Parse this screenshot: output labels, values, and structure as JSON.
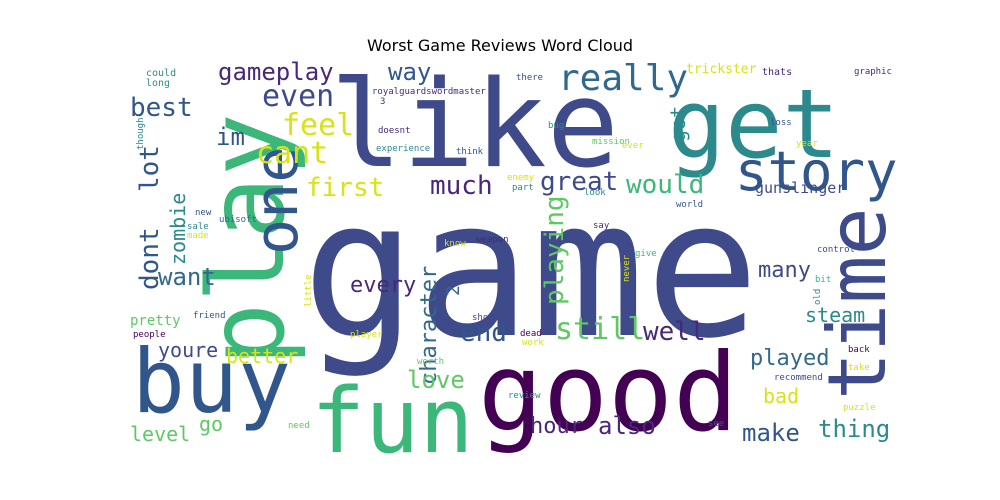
{
  "title": "Worst Game Reviews Word Cloud",
  "words": [
    {
      "text": "game",
      "color": "#3e4a89"
    },
    {
      "text": "like",
      "color": "#3e4a89"
    },
    {
      "text": "get",
      "color": "#2c8a8c"
    },
    {
      "text": "play",
      "color": "#3bb77a"
    },
    {
      "text": "good",
      "color": "#440154"
    },
    {
      "text": "buy",
      "color": "#31568c"
    },
    {
      "text": "fun",
      "color": "#3bb77a"
    },
    {
      "text": "one",
      "color": "#31568c"
    },
    {
      "text": "time",
      "color": "#3e4a89"
    },
    {
      "text": "story",
      "color": "#31568c"
    },
    {
      "text": "really",
      "color": "#30688e"
    },
    {
      "text": "gameplay",
      "color": "#482878"
    },
    {
      "text": "way",
      "color": "#31568c"
    },
    {
      "text": "even",
      "color": "#3e4a89"
    },
    {
      "text": "best",
      "color": "#31568c"
    },
    {
      "text": "feel",
      "color": "#d8e219"
    },
    {
      "text": "cant",
      "color": "#d8e219"
    },
    {
      "text": "im",
      "color": "#31568c"
    },
    {
      "text": "first",
      "color": "#d8e219"
    },
    {
      "text": "much",
      "color": "#482878"
    },
    {
      "text": "great",
      "color": "#3e4a89"
    },
    {
      "text": "would",
      "color": "#3bb77a"
    },
    {
      "text": "got",
      "color": "#2c8a8c"
    },
    {
      "text": "dont",
      "color": "#31568c"
    },
    {
      "text": "lot",
      "color": "#31568c"
    },
    {
      "text": "zombie",
      "color": "#2c8a8c"
    },
    {
      "text": "character",
      "color": "#30688e"
    },
    {
      "text": "playing",
      "color": "#5ec962"
    },
    {
      "text": "every",
      "color": "#482878"
    },
    {
      "text": "want",
      "color": "#30688e"
    },
    {
      "text": "many",
      "color": "#3e4a89"
    },
    {
      "text": "gunslinger",
      "color": "#3e4a89"
    },
    {
      "text": "end",
      "color": "#31568c"
    },
    {
      "text": "still",
      "color": "#5ec962"
    },
    {
      "text": "well",
      "color": "#482878"
    },
    {
      "text": "steam",
      "color": "#2c8a8c"
    },
    {
      "text": "youre",
      "color": "#3e4a89"
    },
    {
      "text": "better",
      "color": "#d8e219"
    },
    {
      "text": "love",
      "color": "#5ec962"
    },
    {
      "text": "played",
      "color": "#30688e"
    },
    {
      "text": "bad",
      "color": "#d8e219"
    },
    {
      "text": "level",
      "color": "#5ec962"
    },
    {
      "text": "go",
      "color": "#5ec962"
    },
    {
      "text": "hour",
      "color": "#482878"
    },
    {
      "text": "also",
      "color": "#482878"
    },
    {
      "text": "make",
      "color": "#31568c"
    },
    {
      "text": "thing",
      "color": "#2c8a8c"
    },
    {
      "text": "pretty",
      "color": "#5ec962"
    },
    {
      "text": "trickster",
      "color": "#d8e219"
    },
    {
      "text": "could",
      "color": "#2c8a8c"
    },
    {
      "text": "long",
      "color": "#2c8a8c"
    },
    {
      "text": "there",
      "color": "#3e4a89"
    },
    {
      "text": "thats",
      "color": "#482878"
    },
    {
      "text": "graphic",
      "color": "#482878"
    },
    {
      "text": "royalguardswordmaster",
      "color": "#482878"
    },
    {
      "text": "3",
      "color": "#482878"
    },
    {
      "text": "doesnt",
      "color": "#482878"
    },
    {
      "text": "bug",
      "color": "#2c8a8c"
    },
    {
      "text": "mission",
      "color": "#5ec962"
    },
    {
      "text": "ever",
      "color": "#d8e219"
    },
    {
      "text": "loss",
      "color": "#31568c"
    },
    {
      "text": "year",
      "color": "#d8e219"
    },
    {
      "text": "experience",
      "color": "#2c8a8c"
    },
    {
      "text": "think",
      "color": "#31568c"
    },
    {
      "text": "though",
      "color": "#2c8a8c"
    },
    {
      "text": "enemy",
      "color": "#d8e219"
    },
    {
      "text": "part",
      "color": "#2c8a8c"
    },
    {
      "text": "look",
      "color": "#2c8a8c"
    },
    {
      "text": "world",
      "color": "#31568c"
    },
    {
      "text": "new",
      "color": "#31568c"
    },
    {
      "text": "ubisoft",
      "color": "#30688e"
    },
    {
      "text": "sale",
      "color": "#2c8a8c"
    },
    {
      "text": "made",
      "color": "#d8e219"
    },
    {
      "text": "say",
      "color": "#482878"
    },
    {
      "text": "know",
      "color": "#d8e219"
    },
    {
      "text": "weapon",
      "color": "#482878"
    },
    {
      "text": "give",
      "color": "#3bb77a"
    },
    {
      "text": "control",
      "color": "#3e4a89"
    },
    {
      "text": "bit",
      "color": "#3bb77a"
    },
    {
      "text": "old",
      "color": "#2c8a8c"
    },
    {
      "text": "little",
      "color": "#d8e219"
    },
    {
      "text": "2",
      "color": "#30688e"
    },
    {
      "text": "never",
      "color": "#d8e219"
    },
    {
      "text": "friend",
      "color": "#31568c"
    },
    {
      "text": "people",
      "color": "#440154"
    },
    {
      "text": "player",
      "color": "#d8e219"
    },
    {
      "text": "short",
      "color": "#3e4a89"
    },
    {
      "text": "dead",
      "color": "#440154"
    },
    {
      "text": "work",
      "color": "#d8e219"
    },
    {
      "text": "back",
      "color": "#440154"
    },
    {
      "text": "take",
      "color": "#d8e219"
    },
    {
      "text": "worth",
      "color": "#5ec962"
    },
    {
      "text": "recommend",
      "color": "#3e4a89"
    },
    {
      "text": "review",
      "color": "#2c8a8c"
    },
    {
      "text": "need",
      "color": "#5ec962"
    },
    {
      "text": "see",
      "color": "#31568c"
    },
    {
      "text": "puzzle",
      "color": "#d8e219"
    }
  ]
}
